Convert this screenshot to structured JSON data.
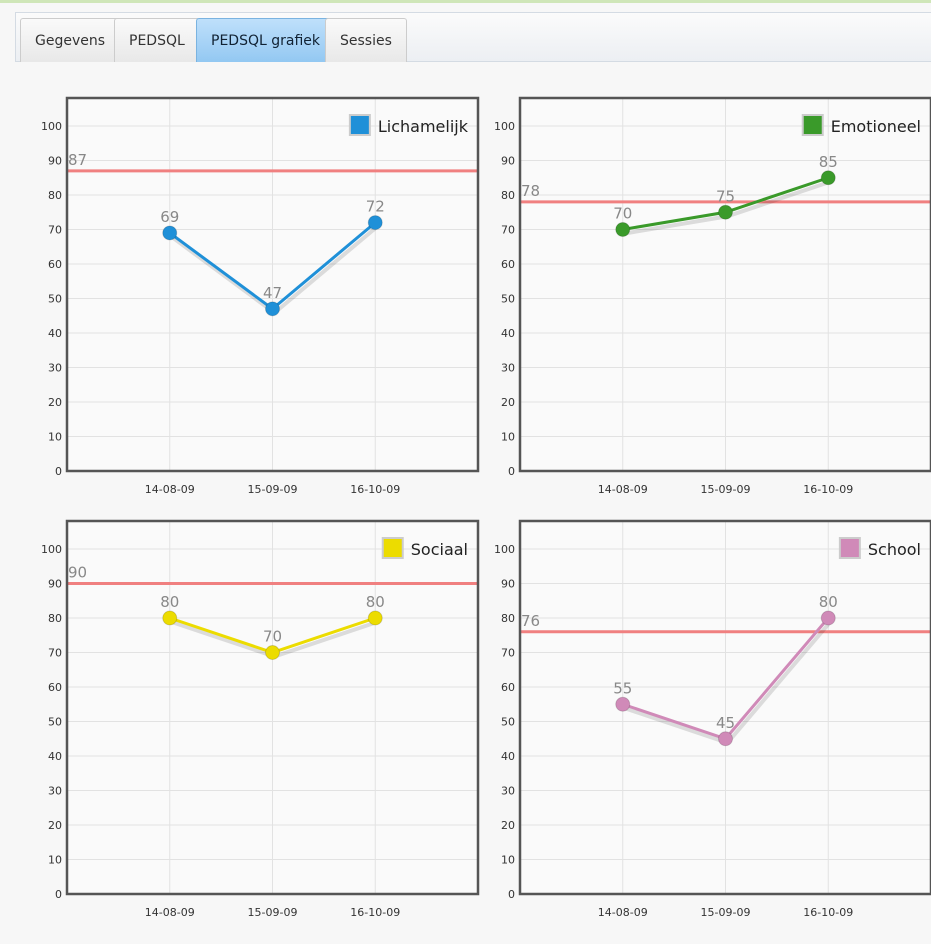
{
  "tabs": [
    "Gegevens",
    "PEDSQL",
    "PEDSQL grafiek",
    "Sessies"
  ],
  "active_tab": 2,
  "chart_data": [
    {
      "type": "line",
      "categories": [
        "14-08-09",
        "15-09-09",
        "16-10-09"
      ],
      "series": [
        {
          "name": "Lichamelijk",
          "color": "#1f90d8",
          "values": [
            69,
            47,
            72
          ]
        }
      ],
      "reference_line": {
        "value": 87,
        "color": "#f08080"
      },
      "ylim": [
        0,
        100
      ],
      "yticks": [
        0,
        10,
        20,
        30,
        40,
        50,
        60,
        70,
        80,
        90,
        100
      ],
      "grid": true,
      "legend": "top-right"
    },
    {
      "type": "line",
      "categories": [
        "14-08-09",
        "15-09-09",
        "16-10-09"
      ],
      "series": [
        {
          "name": "Emotioneel",
          "color": "#3a9a2a",
          "values": [
            70,
            75,
            85
          ]
        }
      ],
      "reference_line": {
        "value": 78,
        "color": "#f08080"
      },
      "ylim": [
        0,
        100
      ],
      "yticks": [
        0,
        10,
        20,
        30,
        40,
        50,
        60,
        70,
        80,
        90,
        100
      ],
      "grid": true,
      "legend": "top-right"
    },
    {
      "type": "line",
      "categories": [
        "14-08-09",
        "15-09-09",
        "16-10-09"
      ],
      "series": [
        {
          "name": "Sociaal",
          "color": "#ecdc00",
          "values": [
            80,
            70,
            80
          ]
        }
      ],
      "reference_line": {
        "value": 90,
        "color": "#f08080"
      },
      "ylim": [
        0,
        100
      ],
      "yticks": [
        0,
        10,
        20,
        30,
        40,
        50,
        60,
        70,
        80,
        90,
        100
      ],
      "grid": true,
      "legend": "top-right"
    },
    {
      "type": "line",
      "categories": [
        "14-08-09",
        "15-09-09",
        "16-10-09"
      ],
      "series": [
        {
          "name": "School",
          "color": "#d08ab8",
          "values": [
            55,
            45,
            80
          ]
        }
      ],
      "reference_line": {
        "value": 76,
        "color": "#f08080"
      },
      "ylim": [
        0,
        100
      ],
      "yticks": [
        0,
        10,
        20,
        30,
        40,
        50,
        60,
        70,
        80,
        90,
        100
      ],
      "grid": true,
      "legend": "top-right"
    }
  ]
}
